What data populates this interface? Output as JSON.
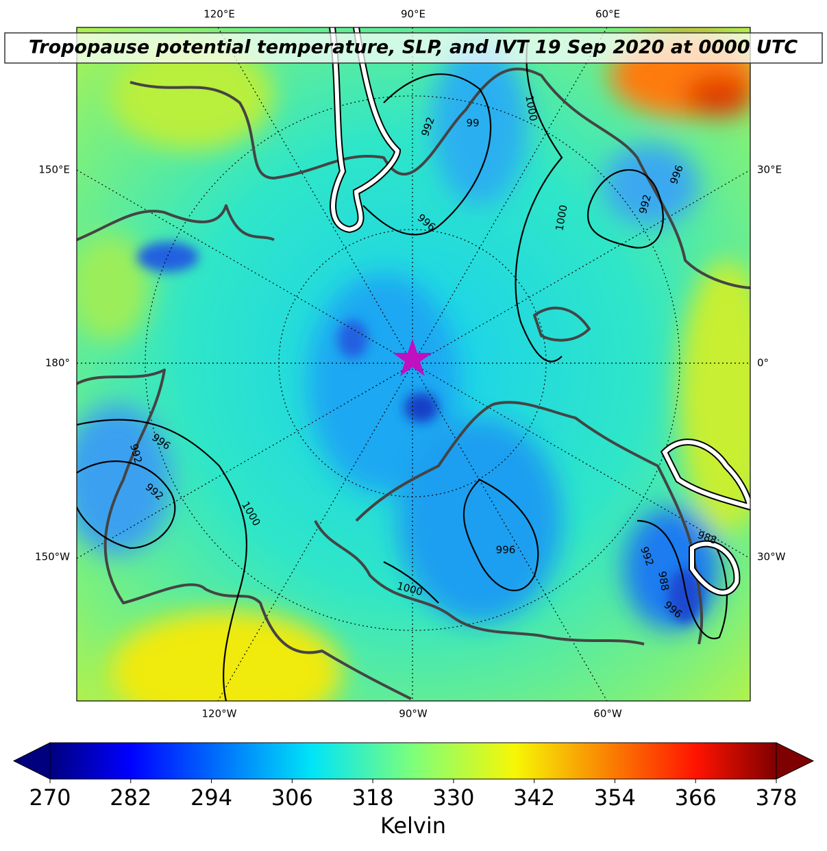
{
  "title": "Tropopause potential temperature, SLP, and IVT 19 Sep 2020 at 0000 UTC",
  "map": {
    "lon_labels_top": [
      "120°E",
      "90°E",
      "60°E"
    ],
    "lon_labels_bottom": [
      "120°W",
      "90°W",
      "60°W"
    ],
    "lon_labels_left": [
      "150°E",
      "180°",
      "150°W"
    ],
    "lon_labels_right": [
      "30°E",
      "0°",
      "30°W"
    ],
    "contour_labels": [
      992,
      99,
      1000,
      996,
      1000,
      992,
      996,
      996,
      992,
      992,
      1000,
      996,
      1000,
      992,
      988,
      996,
      988
    ]
  },
  "colorbar": {
    "label": "Kelvin",
    "lim": [
      270,
      378
    ],
    "ticks": [
      270,
      282,
      294,
      306,
      318,
      330,
      342,
      354,
      366,
      378
    ],
    "extend": "both"
  }
}
